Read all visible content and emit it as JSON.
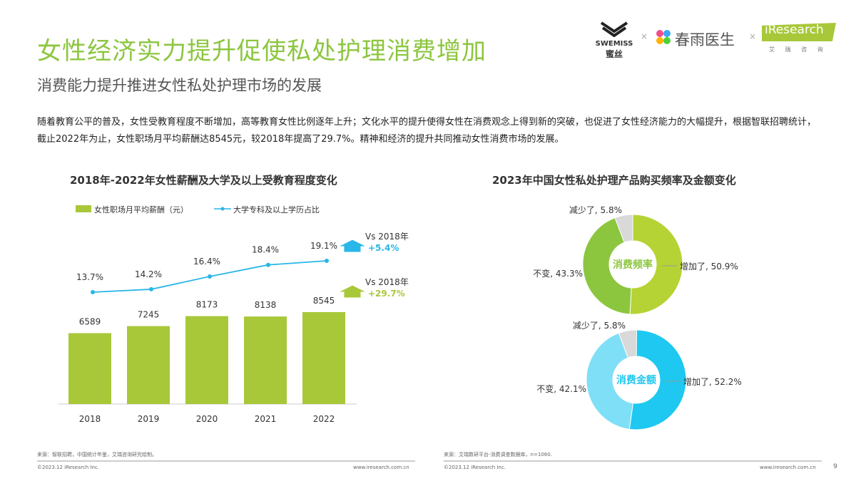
{
  "header": {
    "title": "女性经济实力提升促使私处护理消费增加",
    "subtitle": "消费能力提升推进女性私处护理市场的发展"
  },
  "logos": {
    "swemiss": "SWEMISS",
    "swemiss_cn": "蜜丝",
    "chunyu": "春雨医生",
    "iresearch": "iResearch",
    "iresearch_cn": "艾 瑞 咨 询",
    "separator": "×"
  },
  "paragraph": "随着教育公平的普及，女性受教育程度不断增加，高等教育女性比例逐年上升；文化水平的提升使得女性在消费观念上得到新的突破，也促进了女性经济能力的大幅提升，根据智联招聘统计，截止2022年为止，女性职场月平均薪酬达8545元，较2018年提高了29.7%。精神和经济的提升共同推动女性消费市场的发展。",
  "colors": {
    "accent": "#8cc63f",
    "bar": "#a8c83a",
    "line": "#29b6e8",
    "donut1": [
      "#b5d334",
      "#8cc63f",
      "#d9d9d9"
    ],
    "donut2": [
      "#1ec8f0",
      "#7fdff6",
      "#d9d9d9"
    ]
  },
  "chart_data": [
    {
      "type": "bar",
      "title": "2018年-2022年女性薪酬及大学及以上受教育程度变化",
      "categories": [
        "2018",
        "2019",
        "2020",
        "2021",
        "2022"
      ],
      "series": [
        {
          "name": "女性职场月平均薪酬（元）",
          "type": "bar",
          "values": [
            6589,
            7245,
            8173,
            8138,
            8545
          ]
        },
        {
          "name": "大学专科及以上学历占比",
          "type": "line",
          "values": [
            13.7,
            14.2,
            16.4,
            18.4,
            19.1
          ],
          "unit": "%"
        }
      ],
      "annotations": [
        {
          "label": "Vs 2018年",
          "value": "+5.4%",
          "series": "line"
        },
        {
          "label": "Vs 2018年",
          "value": "+29.7%",
          "series": "bar"
        }
      ],
      "legend": "top-left",
      "grid": false
    },
    {
      "type": "pie",
      "title": "2023年中国女性私处护理产品购买频率及金额变化",
      "charts": [
        {
          "center_label": "消费频率",
          "slices": [
            {
              "label": "增加了",
              "value": 50.9
            },
            {
              "label": "不变",
              "value": 43.3
            },
            {
              "label": "减少了",
              "value": 5.8
            }
          ]
        },
        {
          "center_label": "消费金额",
          "slices": [
            {
              "label": "增加了",
              "value": 52.2
            },
            {
              "label": "不变",
              "value": 42.1
            },
            {
              "label": "减少了",
              "value": 5.8
            }
          ]
        }
      ]
    }
  ],
  "footer": {
    "source_left": "来源：智联招聘，中国统计年鉴，艾瑞咨询研究绘制。",
    "source_right": "来源：艾瑞数研平台-消费调查数据库，n=1060.",
    "copyright": "©2023.12 iResearch Inc.",
    "site": "www.iresearch.com.cn",
    "page": "9"
  }
}
